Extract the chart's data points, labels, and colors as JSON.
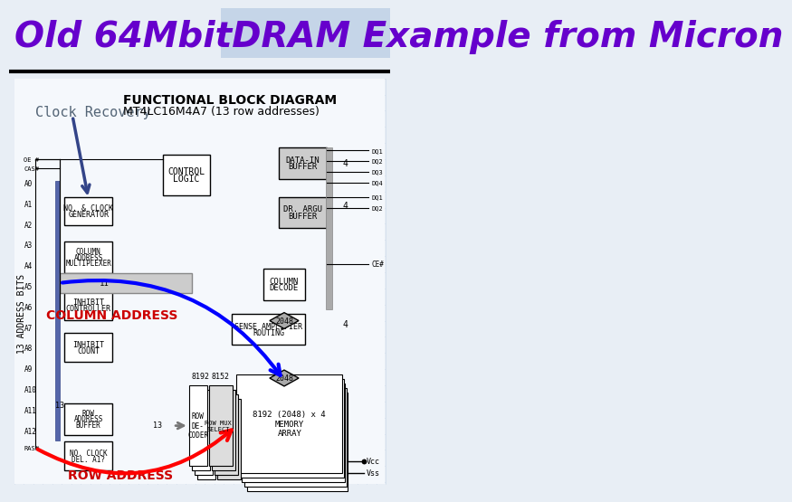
{
  "title": "Old 64MbitDRAM Example from Micron",
  "title_color": "#6600cc",
  "title_fontsize": 28,
  "subtitle_line1": "Clock Recovery",
  "subtitle_color": "#555577",
  "bg_color": "#dce6f1",
  "diagram_bg": "#f0f4f8",
  "header_bg": "#c5d5e8",
  "slide_bg": "#e8eef5"
}
